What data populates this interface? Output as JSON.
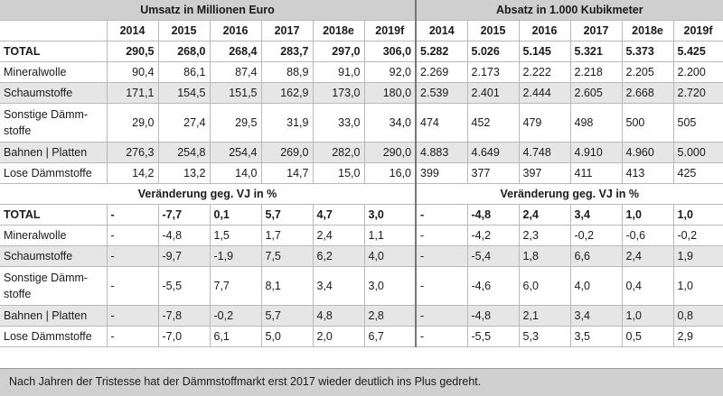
{
  "header": {
    "left_title": "Umsatz in Millionen Euro",
    "right_title": "Absatz in 1.000 Kubikmeter"
  },
  "years": [
    "2014",
    "2015",
    "2016",
    "2017",
    "2018e",
    "2019f"
  ],
  "top_rows": [
    {
      "label": "TOTAL",
      "umsatz": [
        "290,5",
        "268,0",
        "268,4",
        "283,7",
        "297,0",
        "306,0"
      ],
      "absatz": [
        "5.282",
        "5.026",
        "5.145",
        "5.321",
        "5.373",
        "5.425"
      ]
    },
    {
      "label": "Mineralwolle",
      "umsatz": [
        "90,4",
        "86,1",
        "87,4",
        "88,9",
        "91,0",
        "92,0"
      ],
      "absatz": [
        "2.269",
        "2.173",
        "2.222",
        "2.218",
        "2.205",
        "2.200"
      ]
    },
    {
      "label": "Schaumstoffe",
      "umsatz": [
        "171,1",
        "154,5",
        "151,5",
        "162,9",
        "173,0",
        "180,0"
      ],
      "absatz": [
        "2.539",
        "2.401",
        "2.444",
        "2.605",
        "2.668",
        "2.720"
      ]
    },
    {
      "label": "Sonstige Dämm-stoffe",
      "umsatz": [
        "29,0",
        "27,4",
        "29,5",
        "31,9",
        "33,0",
        "34,0"
      ],
      "absatz": [
        "474",
        "452",
        "479",
        "498",
        "500",
        "505"
      ]
    },
    {
      "label": "Bahnen | Platten",
      "umsatz": [
        "276,3",
        "254,8",
        "254,4",
        "269,0",
        "282,0",
        "290,0"
      ],
      "absatz": [
        "4.883",
        "4.649",
        "4.748",
        "4.910",
        "4.960",
        "5.000"
      ]
    },
    {
      "label": "Lose Dämmstoffe",
      "umsatz": [
        "14,2",
        "13,2",
        "14,0",
        "14,7",
        "15,0",
        "16,0"
      ],
      "absatz": [
        "399",
        "377",
        "397",
        "411",
        "413",
        "425"
      ]
    }
  ],
  "change_header": {
    "left": "Veränderung geg. VJ in %",
    "right": "Veränderung geg. VJ in %"
  },
  "bottom_rows": [
    {
      "label": "TOTAL",
      "umsatz": [
        "-",
        "-7,7",
        "0,1",
        "5,7",
        "4,7",
        "3,0"
      ],
      "absatz": [
        "-",
        "-4,8",
        "2,4",
        "3,4",
        "1,0",
        "1,0"
      ]
    },
    {
      "label": "Mineralwolle",
      "umsatz": [
        "-",
        "-4,8",
        "1,5",
        "1,7",
        "2,4",
        "1,1"
      ],
      "absatz": [
        "-",
        "-4,2",
        "2,3",
        "-0,2",
        "-0,6",
        "-0,2"
      ]
    },
    {
      "label": "Schaumstoffe",
      "umsatz": [
        "-",
        "-9,7",
        "-1,9",
        "7,5",
        "6,2",
        "4,0"
      ],
      "absatz": [
        "-",
        "-5,4",
        "1,8",
        "6,6",
        "2,4",
        "1,9"
      ]
    },
    {
      "label": "Sonstige Dämm-stoffe",
      "umsatz": [
        "-",
        "-5,5",
        "7,7",
        "8,1",
        "3,4",
        "3,0"
      ],
      "absatz": [
        "-",
        "-4,6",
        "6,0",
        "4,0",
        "0,4",
        "1,0"
      ]
    },
    {
      "label": "Bahnen | Platten",
      "umsatz": [
        "-",
        "-7,8",
        "-0,2",
        "5,7",
        "4,8",
        "2,8"
      ],
      "absatz": [
        "-",
        "-4,8",
        "2,1",
        "3,4",
        "1,0",
        "0,8"
      ]
    },
    {
      "label": "Lose Dämmstoffe",
      "umsatz": [
        "-",
        "-7,0",
        "6,1",
        "5,0",
        "2,0",
        "6,7"
      ],
      "absatz": [
        "-",
        "-5,5",
        "5,3",
        "3,5",
        "0,5",
        "2,9"
      ]
    }
  ],
  "footer": {
    "caption": "Nach Jahren der Tristesse hat der Dämmstoffmarkt erst 2017 wieder deutlich ins Plus gedreht."
  }
}
